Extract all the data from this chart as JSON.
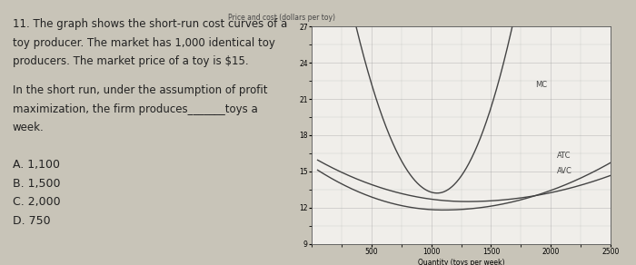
{
  "title": "Price and cost (dollars per toy)",
  "xlabel": "Quantity (toys per week)",
  "xlim": [
    0,
    2500
  ],
  "ylim": [
    9,
    27
  ],
  "yticks": [
    12,
    15,
    18,
    21,
    24,
    27
  ],
  "xticks": [
    500,
    1000,
    1500,
    2000,
    2500
  ],
  "curve_color": "#444444",
  "page_bg_color": "#c8c4b8",
  "plot_bg_color": "#f0eeea",
  "grid_color": "#999999",
  "MC_label": "MC",
  "ATC_label": "ATC",
  "AVC_label": "AVC",
  "label_fontsize": 6,
  "axis_fontsize": 5.5,
  "title_fontsize": 5.5,
  "text_color": "#222222",
  "question_text": "11. The graph shows the short-run cost curves of a\ntoy producer. The market has 1,000 identical toy\nproducers. The market price of a toy is $15.\n\nIn the short run, under the assumption of profit\nmaximization, the firm produces_______toys a\nweek.\n\nA. 1,100\nB. 1,500\nC. 2,000\nD. 750"
}
